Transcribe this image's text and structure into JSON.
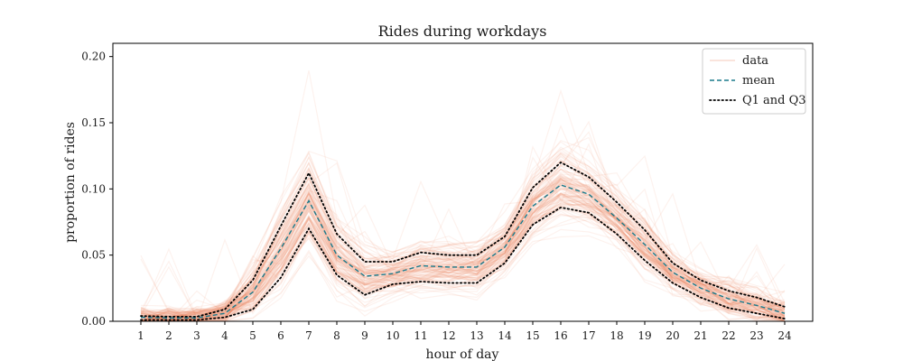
{
  "chart_data": {
    "type": "line",
    "title": "Rides during workdays",
    "xlabel": "hour of day",
    "ylabel": "proportion of rides",
    "x": [
      1,
      2,
      3,
      4,
      5,
      6,
      7,
      8,
      9,
      10,
      11,
      12,
      13,
      14,
      15,
      16,
      17,
      18,
      19,
      20,
      21,
      22,
      23,
      24
    ],
    "xlim": [
      0,
      25
    ],
    "ylim": [
      0,
      0.21
    ],
    "x_ticks": [
      "1",
      "2",
      "3",
      "4",
      "5",
      "6",
      "7",
      "8",
      "9",
      "10",
      "11",
      "12",
      "13",
      "14",
      "15",
      "16",
      "17",
      "18",
      "19",
      "20",
      "21",
      "22",
      "23",
      "24"
    ],
    "y_ticks": [
      "0.00",
      "0.05",
      "0.10",
      "0.15",
      "0.20"
    ],
    "grid": false,
    "legend_position": "top-right",
    "series": [
      {
        "name": "mean",
        "style": "dashed",
        "color": "#1a7a8c",
        "values": [
          0.003,
          0.0025,
          0.0025,
          0.006,
          0.022,
          0.055,
          0.091,
          0.05,
          0.034,
          0.036,
          0.042,
          0.041,
          0.041,
          0.056,
          0.087,
          0.103,
          0.096,
          0.078,
          0.058,
          0.037,
          0.025,
          0.017,
          0.012,
          0.006
        ]
      },
      {
        "name": "Q1 and Q3",
        "style": "dotted",
        "color": "#000000",
        "values": [
          0.004,
          0.0035,
          0.0035,
          0.009,
          0.031,
          0.072,
          0.112,
          0.066,
          0.045,
          0.045,
          0.052,
          0.05,
          0.05,
          0.064,
          0.101,
          0.12,
          0.109,
          0.09,
          0.069,
          0.044,
          0.031,
          0.023,
          0.018,
          0.011
        ]
      },
      {
        "name": "",
        "style": "dotted",
        "color": "#000000",
        "values": [
          0.001,
          0.001,
          0.001,
          0.003,
          0.009,
          0.033,
          0.07,
          0.035,
          0.02,
          0.028,
          0.03,
          0.029,
          0.029,
          0.044,
          0.073,
          0.086,
          0.082,
          0.066,
          0.046,
          0.029,
          0.018,
          0.01,
          0.006,
          0.002
        ]
      }
    ],
    "data_traces": {
      "name": "data",
      "color": "#e8835c",
      "opacity": 0.1,
      "count": 120,
      "note_shape": "bimodal around hour 7 and hour 16"
    }
  }
}
